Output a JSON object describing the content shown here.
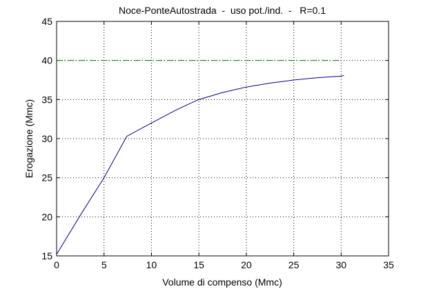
{
  "chart_data": {
    "type": "line",
    "title": "Noce-PonteAutostrada  -  uso pot./ind.  -   R=0.1",
    "x_label": "Volume di compenso (Mmc)",
    "y_label": "Erogazione (Mmc)",
    "series": [
      {
        "color": "#00007f",
        "line_style": "solid",
        "x": [
          0,
          2.5,
          5,
          7.4,
          10,
          12.5,
          13.7,
          15,
          17.5,
          20,
          22.5,
          25,
          27.5,
          30,
          30.3
        ],
        "values": [
          15.2,
          20.2,
          25,
          30.3,
          32,
          33.6,
          34.3,
          35,
          35.9,
          36.6,
          37.1,
          37.5,
          37.8,
          38,
          38.1
        ]
      },
      {
        "color": "#007f00",
        "line_style": "dashdot",
        "x": [
          0,
          30
        ],
        "values": [
          40,
          40
        ]
      }
    ],
    "xlim": [
      0,
      35
    ],
    "xticks": [
      0,
      5,
      10,
      15,
      20,
      25,
      30,
      35
    ],
    "ylim": [
      15,
      45
    ],
    "yticks": [
      15,
      20,
      25,
      30,
      35,
      40,
      45
    ],
    "grid": true
  }
}
